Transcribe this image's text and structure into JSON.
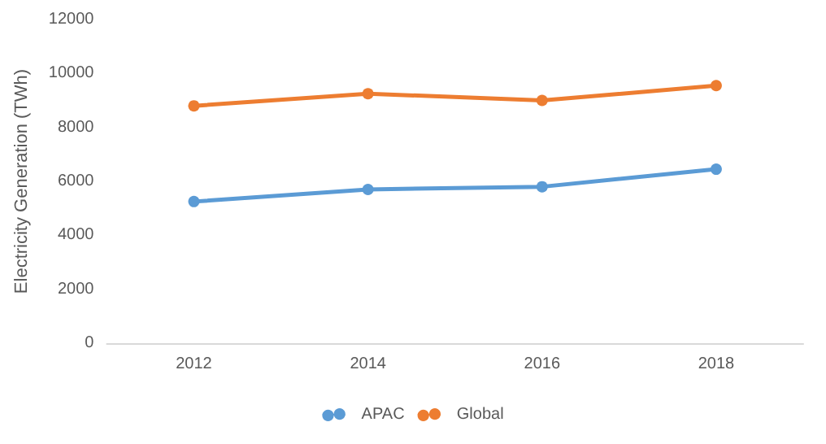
{
  "chart_data": {
    "type": "line",
    "ylabel": "Electricity Generation (TWh)",
    "categories": [
      "2012",
      "2014",
      "2016",
      "2018"
    ],
    "series": [
      {
        "name": "APAC",
        "color": "#5b9bd5",
        "values": [
          5250,
          5700,
          5800,
          6450
        ]
      },
      {
        "name": "Global",
        "color": "#ed7d31",
        "values": [
          8800,
          9250,
          9000,
          9550
        ]
      }
    ],
    "ylim": [
      0,
      12000
    ],
    "yticks": [
      0,
      2000,
      4000,
      6000,
      8000,
      10000,
      12000
    ],
    "grid": false,
    "legend": "bottom",
    "marker": "circle"
  }
}
